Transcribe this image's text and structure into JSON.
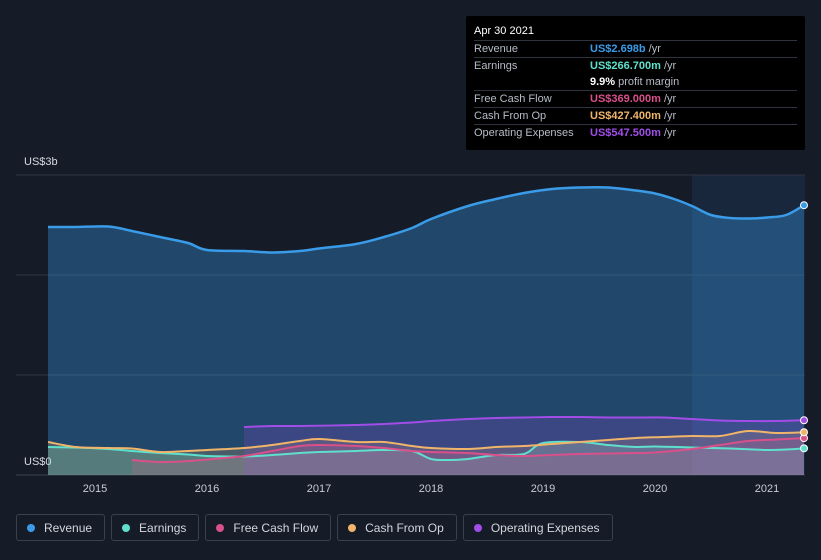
{
  "chart_data": {
    "type": "area",
    "y_axis_top_label": "US$3b",
    "y_axis_bottom_label": "US$0",
    "ylim": [
      0,
      3000
    ],
    "xlim": [
      2014.58,
      2021.33
    ],
    "x_ticks": [
      "2015",
      "2016",
      "2017",
      "2018",
      "2019",
      "2020",
      "2021"
    ],
    "grid": true,
    "legend_position": "bottom",
    "series": [
      {
        "name": "Revenue",
        "key": "revenue",
        "color": "#3a9ce9",
        "fill": true,
        "points": [
          [
            2014.58,
            2480
          ],
          [
            2014.83,
            2480
          ],
          [
            2015.12,
            2485
          ],
          [
            2015.33,
            2440
          ],
          [
            2015.58,
            2380
          ],
          [
            2015.83,
            2320
          ],
          [
            2016.0,
            2250
          ],
          [
            2016.33,
            2240
          ],
          [
            2016.58,
            2225
          ],
          [
            2016.83,
            2240
          ],
          [
            2017.0,
            2265
          ],
          [
            2017.33,
            2310
          ],
          [
            2017.58,
            2380
          ],
          [
            2017.83,
            2470
          ],
          [
            2018.0,
            2560
          ],
          [
            2018.33,
            2690
          ],
          [
            2018.58,
            2760
          ],
          [
            2018.83,
            2820
          ],
          [
            2019.08,
            2860
          ],
          [
            2019.33,
            2875
          ],
          [
            2019.58,
            2875
          ],
          [
            2019.83,
            2845
          ],
          [
            2020.0,
            2815
          ],
          [
            2020.17,
            2760
          ],
          [
            2020.33,
            2690
          ],
          [
            2020.5,
            2600
          ],
          [
            2020.67,
            2570
          ],
          [
            2020.83,
            2565
          ],
          [
            2021.0,
            2575
          ],
          [
            2021.17,
            2600
          ],
          [
            2021.33,
            2698
          ]
        ]
      },
      {
        "name": "Earnings",
        "key": "earnings",
        "color": "#5fe0cc",
        "fill": true,
        "points": [
          [
            2014.58,
            280
          ],
          [
            2014.83,
            275
          ],
          [
            2015.12,
            260
          ],
          [
            2015.33,
            240
          ],
          [
            2015.58,
            220
          ],
          [
            2015.83,
            205
          ],
          [
            2016.0,
            190
          ],
          [
            2016.33,
            185
          ],
          [
            2016.58,
            200
          ],
          [
            2016.83,
            220
          ],
          [
            2017.0,
            230
          ],
          [
            2017.33,
            240
          ],
          [
            2017.58,
            250
          ],
          [
            2017.83,
            240
          ],
          [
            2018.0,
            160
          ],
          [
            2018.17,
            150
          ],
          [
            2018.33,
            160
          ],
          [
            2018.58,
            200
          ],
          [
            2018.83,
            210
          ],
          [
            2019.0,
            320
          ],
          [
            2019.33,
            330
          ],
          [
            2019.58,
            300
          ],
          [
            2019.83,
            280
          ],
          [
            2020.0,
            285
          ],
          [
            2020.33,
            275
          ],
          [
            2020.5,
            270
          ],
          [
            2020.67,
            265
          ],
          [
            2020.83,
            258
          ],
          [
            2021.0,
            250
          ],
          [
            2021.17,
            255
          ],
          [
            2021.33,
            266.7
          ]
        ]
      },
      {
        "name": "Free Cash Flow",
        "key": "fcf",
        "color": "#d9508a",
        "fill": true,
        "points": [
          [
            2015.33,
            150
          ],
          [
            2015.58,
            130
          ],
          [
            2015.83,
            140
          ],
          [
            2016.0,
            155
          ],
          [
            2016.33,
            190
          ],
          [
            2016.58,
            240
          ],
          [
            2016.83,
            290
          ],
          [
            2017.0,
            300
          ],
          [
            2017.33,
            290
          ],
          [
            2017.58,
            270
          ],
          [
            2017.83,
            240
          ],
          [
            2018.0,
            230
          ],
          [
            2018.33,
            220
          ],
          [
            2018.58,
            200
          ],
          [
            2018.83,
            190
          ],
          [
            2019.08,
            200
          ],
          [
            2019.33,
            210
          ],
          [
            2019.58,
            215
          ],
          [
            2019.83,
            220
          ],
          [
            2020.0,
            225
          ],
          [
            2020.33,
            260
          ],
          [
            2020.58,
            300
          ],
          [
            2020.83,
            340
          ],
          [
            2021.08,
            355
          ],
          [
            2021.33,
            369
          ]
        ]
      },
      {
        "name": "Cash From Op",
        "key": "cfo",
        "color": "#f0b56a",
        "fill": true,
        "points": [
          [
            2014.58,
            330
          ],
          [
            2014.83,
            280
          ],
          [
            2015.12,
            270
          ],
          [
            2015.33,
            265
          ],
          [
            2015.58,
            230
          ],
          [
            2015.83,
            240
          ],
          [
            2016.0,
            250
          ],
          [
            2016.33,
            270
          ],
          [
            2016.58,
            300
          ],
          [
            2016.83,
            340
          ],
          [
            2017.0,
            360
          ],
          [
            2017.33,
            330
          ],
          [
            2017.58,
            330
          ],
          [
            2017.83,
            290
          ],
          [
            2018.0,
            270
          ],
          [
            2018.33,
            260
          ],
          [
            2018.58,
            280
          ],
          [
            2018.83,
            290
          ],
          [
            2019.08,
            310
          ],
          [
            2019.33,
            330
          ],
          [
            2019.58,
            350
          ],
          [
            2019.83,
            370
          ],
          [
            2020.08,
            380
          ],
          [
            2020.33,
            390
          ],
          [
            2020.58,
            390
          ],
          [
            2020.83,
            440
          ],
          [
            2021.08,
            420
          ],
          [
            2021.33,
            427.4
          ]
        ]
      },
      {
        "name": "Operating Expenses",
        "key": "opex",
        "color": "#a24de8",
        "fill": true,
        "points": [
          [
            2016.33,
            480
          ],
          [
            2016.58,
            490
          ],
          [
            2016.83,
            490
          ],
          [
            2017.33,
            500
          ],
          [
            2017.58,
            510
          ],
          [
            2017.83,
            525
          ],
          [
            2018.0,
            540
          ],
          [
            2018.33,
            560
          ],
          [
            2018.58,
            570
          ],
          [
            2018.83,
            575
          ],
          [
            2019.08,
            580
          ],
          [
            2019.33,
            580
          ],
          [
            2019.58,
            575
          ],
          [
            2019.83,
            575
          ],
          [
            2020.08,
            575
          ],
          [
            2020.33,
            560
          ],
          [
            2020.58,
            545
          ],
          [
            2020.83,
            540
          ],
          [
            2021.08,
            540
          ],
          [
            2021.33,
            547.5
          ]
        ]
      }
    ],
    "highlight_from": 2020.33
  },
  "tooltip": {
    "date": "Apr 30 2021",
    "rows": [
      {
        "label": "Revenue",
        "value": "US$2.698b",
        "unit": "/yr",
        "color": "#3a9ce9"
      },
      {
        "label": "Earnings",
        "value": "US$266.700m",
        "unit": "/yr",
        "color": "#5fe0cc"
      },
      {
        "label": "",
        "value": "9.9%",
        "unit": "profit margin",
        "color": "#ffffff"
      },
      {
        "label": "Free Cash Flow",
        "value": "US$369.000m",
        "unit": "/yr",
        "color": "#d9508a"
      },
      {
        "label": "Cash From Op",
        "value": "US$427.400m",
        "unit": "/yr",
        "color": "#f0b56a"
      },
      {
        "label": "Operating Expenses",
        "value": "US$547.500m",
        "unit": "/yr",
        "color": "#a24de8"
      }
    ]
  },
  "legend": [
    {
      "label": "Revenue",
      "color": "#3a9ce9"
    },
    {
      "label": "Earnings",
      "color": "#5fe0cc"
    },
    {
      "label": "Free Cash Flow",
      "color": "#d9508a"
    },
    {
      "label": "Cash From Op",
      "color": "#f0b56a"
    },
    {
      "label": "Operating Expenses",
      "color": "#a24de8"
    }
  ]
}
